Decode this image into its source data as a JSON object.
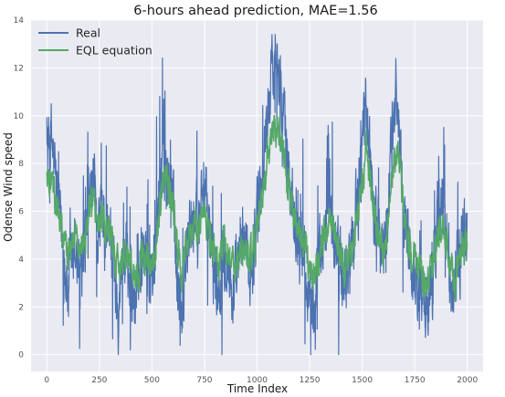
{
  "chart_data": {
    "type": "line",
    "title": "6-hours ahead prediction, MAE=1.56",
    "xlabel": "Time Index",
    "ylabel": "Odense Wind speed",
    "xlim": [
      -75,
      2075
    ],
    "ylim": [
      -0.7,
      14
    ],
    "xticks": [
      0,
      250,
      500,
      750,
      1000,
      1250,
      1500,
      1750,
      2000
    ],
    "yticks": [
      0,
      2,
      4,
      6,
      8,
      10,
      12,
      14
    ],
    "grid": true,
    "legend_position": "top-left",
    "n_points": 2000,
    "colors": {
      "real": "#4c72b0",
      "eql": "#55a868",
      "background": "#eaeaf2",
      "grid": "#ffffff"
    },
    "series": [
      {
        "name": "Real",
        "color": "#4c72b0",
        "x": [
          0,
          20,
          40,
          60,
          80,
          100,
          120,
          140,
          160,
          180,
          200,
          220,
          240,
          260,
          280,
          300,
          320,
          340,
          360,
          380,
          400,
          420,
          440,
          460,
          480,
          500,
          520,
          540,
          560,
          580,
          600,
          620,
          640,
          660,
          680,
          700,
          720,
          740,
          760,
          780,
          800,
          820,
          840,
          860,
          880,
          900,
          920,
          940,
          960,
          980,
          1000,
          1020,
          1040,
          1060,
          1080,
          1100,
          1120,
          1140,
          1160,
          1180,
          1200,
          1220,
          1240,
          1260,
          1280,
          1300,
          1320,
          1340,
          1360,
          1380,
          1400,
          1420,
          1440,
          1460,
          1480,
          1500,
          1520,
          1540,
          1560,
          1580,
          1600,
          1620,
          1640,
          1660,
          1680,
          1700,
          1720,
          1740,
          1760,
          1780,
          1800,
          1820,
          1840,
          1860,
          1880,
          1900,
          1920,
          1940,
          1960,
          1980,
          2000
        ],
        "values": [
          8.5,
          9.2,
          7.5,
          5.8,
          4.2,
          2.5,
          3.8,
          4.5,
          2.8,
          4.0,
          6.5,
          7.2,
          5.0,
          6.0,
          4.5,
          5.5,
          3.5,
          2.0,
          4.0,
          4.2,
          3.0,
          2.0,
          3.5,
          5.0,
          4.0,
          3.0,
          5.0,
          7.5,
          8.5,
          7.0,
          6.5,
          3.5,
          2.0,
          4.0,
          5.0,
          6.0,
          5.0,
          7.5,
          6.0,
          4.5,
          3.5,
          2.5,
          5.0,
          4.0,
          2.5,
          3.0,
          4.0,
          5.0,
          3.5,
          4.0,
          6.0,
          7.0,
          9.0,
          11.0,
          12.5,
          13.0,
          10.0,
          8.5,
          7.0,
          6.0,
          5.0,
          4.5,
          3.0,
          2.0,
          3.0,
          4.0,
          5.5,
          6.0,
          5.0,
          4.5,
          3.5,
          3.0,
          4.0,
          5.0,
          6.5,
          8.5,
          10.5,
          8.0,
          6.0,
          5.0,
          4.0,
          6.0,
          8.5,
          11.0,
          9.0,
          6.0,
          4.5,
          3.5,
          3.0,
          2.5,
          1.5,
          2.5,
          4.0,
          5.5,
          7.0,
          5.0,
          3.0,
          2.5,
          4.0,
          5.5,
          5.0
        ]
      },
      {
        "name": "EQL equation",
        "color": "#55a868",
        "x": [
          0,
          20,
          40,
          60,
          80,
          100,
          120,
          140,
          160,
          180,
          200,
          220,
          240,
          260,
          280,
          300,
          320,
          340,
          360,
          380,
          400,
          420,
          440,
          460,
          480,
          500,
          520,
          540,
          560,
          580,
          600,
          620,
          640,
          660,
          680,
          700,
          720,
          740,
          760,
          780,
          800,
          820,
          840,
          860,
          880,
          900,
          920,
          940,
          960,
          980,
          1000,
          1020,
          1040,
          1060,
          1080,
          1100,
          1120,
          1140,
          1160,
          1180,
          1200,
          1220,
          1240,
          1260,
          1280,
          1300,
          1320,
          1340,
          1360,
          1380,
          1400,
          1420,
          1440,
          1460,
          1480,
          1500,
          1520,
          1540,
          1560,
          1580,
          1600,
          1620,
          1640,
          1660,
          1680,
          1700,
          1720,
          1740,
          1760,
          1780,
          1800,
          1820,
          1840,
          1860,
          1880,
          1900,
          1920,
          1940,
          1960,
          1980,
          2000
        ],
        "values": [
          7.5,
          7.2,
          6.5,
          5.5,
          4.8,
          4.2,
          4.5,
          4.8,
          4.5,
          4.8,
          5.8,
          6.5,
          5.5,
          5.8,
          5.0,
          5.2,
          4.2,
          3.5,
          4.0,
          4.2,
          3.8,
          3.2,
          3.5,
          4.2,
          4.0,
          3.5,
          4.5,
          6.5,
          7.5,
          6.8,
          6.2,
          4.5,
          3.5,
          4.2,
          4.8,
          5.5,
          5.0,
          6.2,
          5.5,
          4.8,
          4.2,
          3.8,
          4.8,
          4.5,
          3.8,
          3.8,
          4.2,
          4.6,
          4.0,
          4.2,
          5.2,
          6.2,
          7.5,
          9.0,
          9.8,
          9.5,
          8.5,
          7.5,
          6.5,
          5.8,
          5.2,
          4.8,
          4.0,
          3.5,
          3.8,
          4.2,
          5.0,
          5.5,
          5.0,
          4.6,
          4.0,
          3.8,
          4.2,
          4.8,
          5.8,
          7.2,
          8.5,
          7.2,
          5.8,
          5.0,
          4.5,
          5.5,
          7.0,
          8.5,
          7.8,
          5.8,
          4.8,
          4.0,
          3.6,
          3.2,
          2.8,
          3.2,
          4.0,
          4.8,
          5.8,
          4.8,
          3.6,
          3.2,
          3.8,
          4.6,
          4.5
        ]
      }
    ]
  }
}
